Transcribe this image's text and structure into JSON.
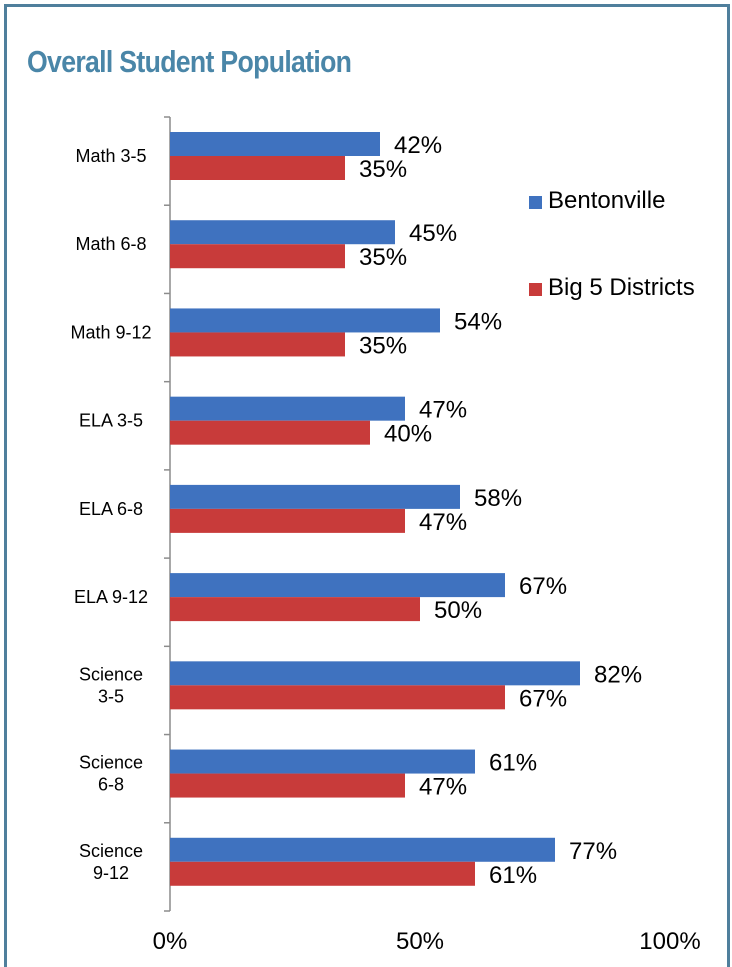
{
  "chart_data": {
    "type": "bar",
    "orientation": "horizontal",
    "title": "Overall Student Population",
    "categories": [
      [
        "Math 3-5"
      ],
      [
        "Math 6-8"
      ],
      [
        "Math 9-12"
      ],
      [
        "ELA 3-5"
      ],
      [
        "ELA 6-8"
      ],
      [
        "ELA 9-12"
      ],
      [
        "Science",
        "3-5"
      ],
      [
        "Science",
        "6-8"
      ],
      [
        "Science",
        "9-12"
      ]
    ],
    "series": [
      {
        "name": "Bentonville",
        "color": "#3f72bf",
        "values": [
          42,
          45,
          54,
          47,
          58,
          67,
          82,
          61,
          77
        ]
      },
      {
        "name": "Big 5 Districts",
        "color": "#c83b3a",
        "values": [
          35,
          35,
          35,
          40,
          47,
          50,
          67,
          47,
          61
        ]
      }
    ],
    "value_suffix": "%",
    "xlim": [
      0,
      100
    ],
    "xticks": [
      0,
      50,
      100
    ],
    "xtick_labels": [
      "0%",
      "50%",
      "100%"
    ],
    "legend_position": "right",
    "grid": false
  }
}
